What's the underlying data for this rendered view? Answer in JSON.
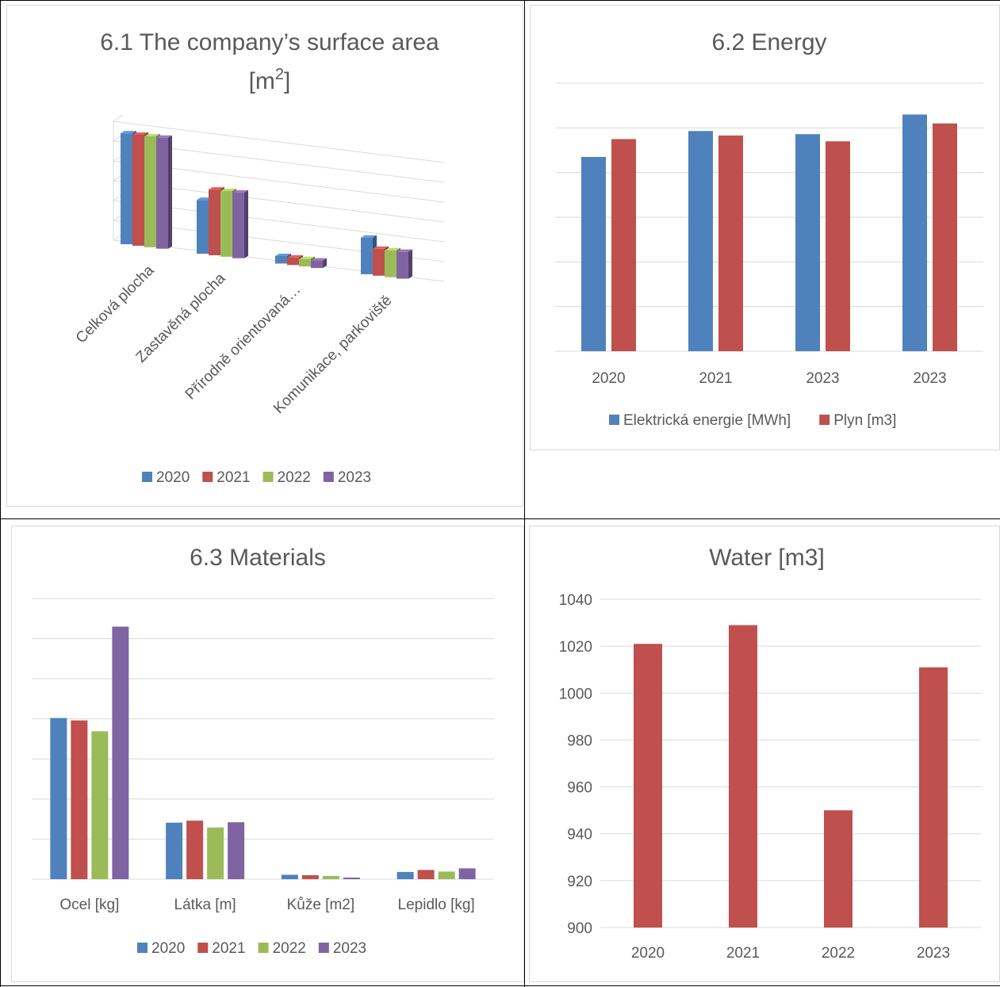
{
  "colors": {
    "blue": "#4f81bd",
    "red": "#c0504d",
    "green": "#9bbb59",
    "purple": "#8064a2",
    "grid": "#d9d9d9"
  },
  "chart_data": [
    {
      "type": "bar",
      "three_d": true,
      "title": "6.1 The company’s surface area",
      "title_line2": "[m",
      "title_sup": "2",
      "title_end": "]",
      "categories": [
        "Celková plocha",
        "Zastavěná plocha",
        "Přírodně orientovaná…",
        "Komunikace, parkoviště"
      ],
      "series": [
        {
          "name": "2020",
          "values": [
            100,
            47,
            4,
            31
          ]
        },
        {
          "name": "2021",
          "values": [
            100,
            58,
            4,
            22
          ]
        },
        {
          "name": "2022",
          "values": [
            100,
            58,
            4,
            22
          ]
        },
        {
          "name": "2023",
          "values": [
            100,
            58,
            4,
            22
          ]
        }
      ],
      "ylim": [
        0,
        100
      ],
      "grid": true,
      "legend": "bottom"
    },
    {
      "type": "bar",
      "title": "6.2 Energy",
      "categories": [
        "2020",
        "2021",
        "2023",
        "2023"
      ],
      "series": [
        {
          "name": "Elektrická energie [MWh]",
          "values": [
            4.35,
            4.93,
            4.86,
            5.3
          ]
        },
        {
          "name": "Plyn [m3]",
          "values": [
            4.75,
            4.83,
            4.7,
            5.1
          ]
        }
      ],
      "ylim": [
        0,
        6
      ],
      "grid": true,
      "legend": "bottom"
    },
    {
      "type": "bar",
      "title": "6.3 Materials",
      "categories": [
        "Ocel [kg]",
        "Látka [m]",
        "Kůže [m2]",
        "Lepidlo [kg]"
      ],
      "series": [
        {
          "name": "2020",
          "values": [
            4.02,
            1.41,
            0.11,
            0.18
          ]
        },
        {
          "name": "2021",
          "values": [
            3.96,
            1.46,
            0.1,
            0.23
          ]
        },
        {
          "name": "2022",
          "values": [
            3.69,
            1.29,
            0.08,
            0.19
          ]
        },
        {
          "name": "2023",
          "values": [
            6.3,
            1.42,
            0.04,
            0.27
          ]
        }
      ],
      "ylim": [
        0,
        7
      ],
      "grid": true,
      "legend": "bottom"
    },
    {
      "type": "bar",
      "title": "Water [m3]",
      "categories": [
        "2020",
        "2021",
        "2022",
        "2023"
      ],
      "series": [
        {
          "name": "",
          "values": [
            1021,
            1029,
            950,
            1011
          ]
        }
      ],
      "ylim": [
        900,
        1040
      ],
      "yticks": [
        "900",
        "920",
        "940",
        "960",
        "980",
        "1000",
        "1020",
        "1040"
      ],
      "grid": true,
      "legend": "none"
    }
  ]
}
